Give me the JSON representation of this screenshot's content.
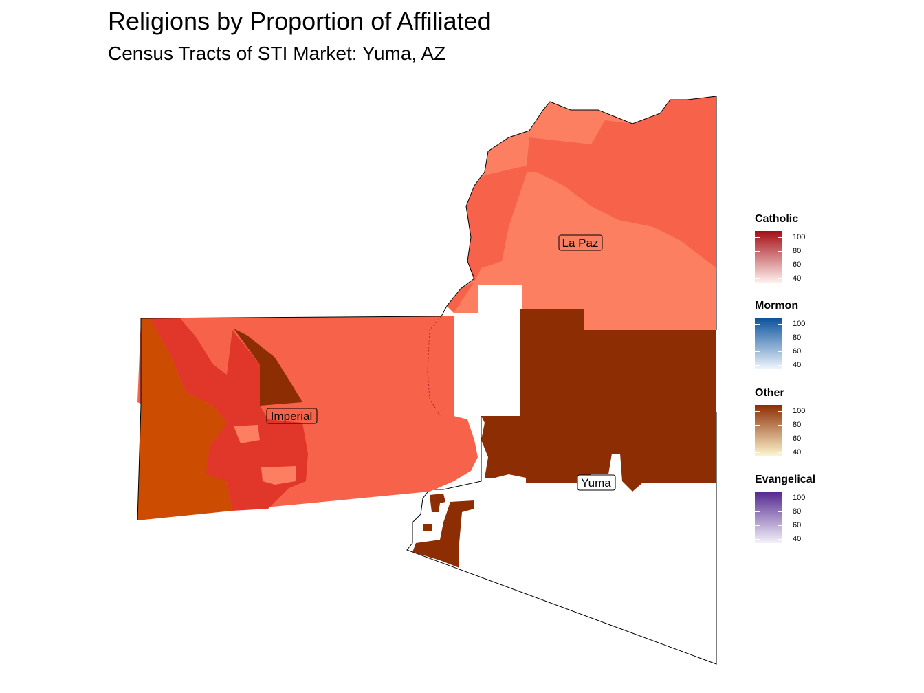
{
  "title": "Religions by Proportion of Affiliated",
  "subtitle": "Census Tracts of STI Market: Yuma, AZ",
  "places": {
    "imperial": "Imperial",
    "la_paz": "La Paz",
    "yuma": "Yuma"
  },
  "legends": [
    {
      "name": "Catholic",
      "ticks": [
        "100",
        "80",
        "60",
        "40"
      ],
      "color_low": "#fff0ee",
      "color_high": "#a50f15"
    },
    {
      "name": "Mormon",
      "ticks": [
        "100",
        "80",
        "60",
        "40"
      ],
      "color_low": "#f0f6fd",
      "color_high": "#08519c"
    },
    {
      "name": "Other",
      "ticks": [
        "100",
        "80",
        "60",
        "40"
      ],
      "color_low": "#fff8d0",
      "color_high": "#8c2d04"
    },
    {
      "name": "Evangelical",
      "ticks": [
        "100",
        "80",
        "60",
        "40"
      ],
      "color_low": "#f4f2f9",
      "color_high": "#54278f"
    }
  ],
  "fill_colors": {
    "catholic_light": "#fc7f62",
    "catholic_mid": "#f6634a",
    "catholic_dark": "#e0372a",
    "other_mid": "#cc4c02",
    "other_dark": "#8c2d04"
  }
}
